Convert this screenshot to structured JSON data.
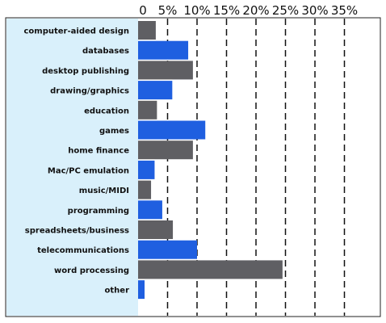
{
  "chart_data": {
    "type": "bar",
    "orientation": "horizontal",
    "categories": [
      "computer-aided design",
      "databases",
      "desktop publishing",
      "drawing/graphics",
      "education",
      "games",
      "home finance",
      "Mac/PC emulation",
      "music/MIDI",
      "programming",
      "spreadsheets/business",
      "telecommunications",
      "word processing",
      "other"
    ],
    "values": [
      3,
      8.5,
      9.3,
      5.8,
      3.2,
      11.4,
      9.3,
      2.8,
      2.2,
      4.1,
      5.9,
      10,
      24.5,
      1.1
    ],
    "bar_colors": [
      "#5f5f63",
      "#1f5fe0",
      "#5f5f63",
      "#1f5fe0",
      "#5f5f63",
      "#1f5fe0",
      "#5f5f63",
      "#1f5fe0",
      "#5f5f63",
      "#1f5fe0",
      "#5f5f63",
      "#1f5fe0",
      "#5f5f63",
      "#1f5fe0"
    ],
    "xlim": [
      0,
      35
    ],
    "x_ticks": [
      0,
      5,
      10,
      15,
      20,
      25,
      30,
      35
    ],
    "x_tick_labels": [
      "0",
      "5%",
      "10%",
      "15%",
      "20%",
      "25%",
      "30%",
      "35%"
    ],
    "grid": "dashed vertical",
    "label_panel_color": "#d9f0fb"
  }
}
